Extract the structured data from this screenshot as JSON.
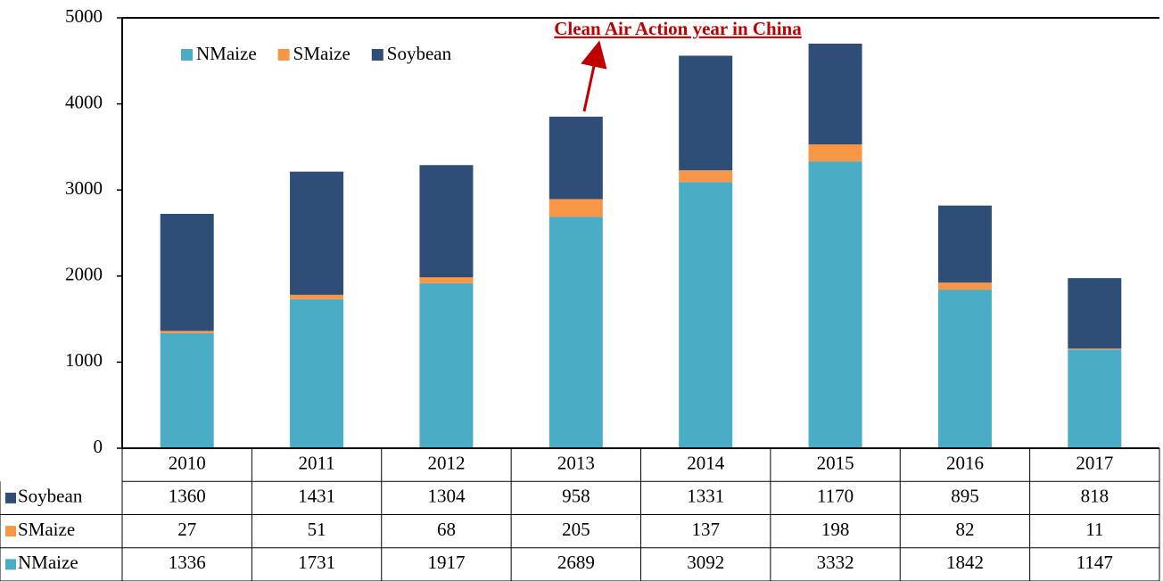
{
  "chart_data": {
    "type": "bar",
    "stacked": true,
    "categories": [
      "2010",
      "2011",
      "2012",
      "2013",
      "2014",
      "2015",
      "2016",
      "2017"
    ],
    "series": [
      {
        "name": "NMaize",
        "color": "#4bacc6",
        "values": [
          1336,
          1731,
          1917,
          2689,
          3092,
          3332,
          1842,
          1147
        ]
      },
      {
        "name": "SMaize",
        "color": "#f79646",
        "values": [
          27,
          51,
          68,
          205,
          137,
          198,
          82,
          11
        ]
      },
      {
        "name": "Soybean",
        "color": "#2e4e78",
        "values": [
          1360,
          1431,
          1304,
          958,
          1331,
          1170,
          895,
          818
        ]
      }
    ],
    "ylim": [
      0,
      5000
    ],
    "yticks": [
      0,
      1000,
      2000,
      3000,
      4000,
      5000
    ],
    "grid": false,
    "legend": "top-left",
    "data_table": true,
    "annotation": "Clean Air Action year in China"
  }
}
